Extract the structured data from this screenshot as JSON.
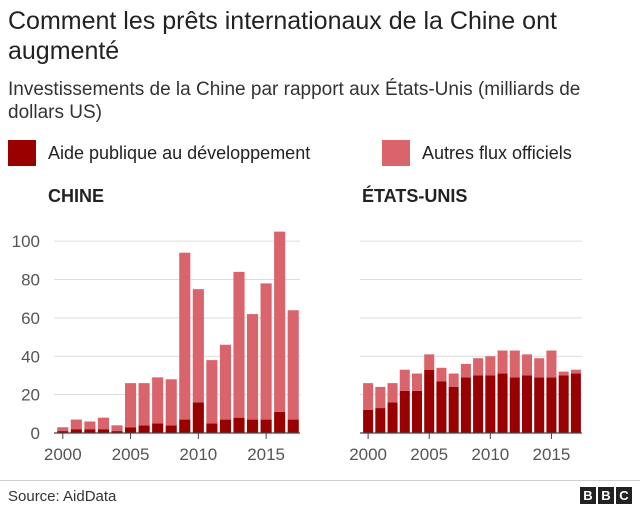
{
  "title": "Comment les prêts internationaux de la Chine ont augmenté",
  "subtitle": "Investissements de la Chine par rapport aux États-Unis (milliards de dollars US)",
  "legend": [
    {
      "label": "Aide publique au développement",
      "color": "#990000"
    },
    {
      "label": "Autres flux officiels",
      "color": "#d9646b"
    }
  ],
  "source": "Source: AidData",
  "logo": [
    "B",
    "B",
    "C"
  ],
  "chart_data": [
    {
      "type": "bar",
      "stacked": true,
      "title": "CHINE",
      "x": [
        2000,
        2001,
        2002,
        2003,
        2004,
        2005,
        2006,
        2007,
        2008,
        2009,
        2010,
        2011,
        2012,
        2013,
        2014,
        2015,
        2016,
        2017
      ],
      "series": [
        {
          "name": "Aide publique au développement",
          "color": "#990000",
          "values": [
            1,
            2,
            2,
            2,
            1,
            3,
            4,
            5,
            4,
            7,
            16,
            5,
            7,
            8,
            7,
            7,
            11,
            7
          ]
        },
        {
          "name": "Autres flux officiels",
          "color": "#d9646b",
          "values": [
            2,
            5,
            4,
            6,
            3,
            23,
            22,
            24,
            24,
            87,
            59,
            33,
            39,
            76,
            55,
            71,
            94,
            57
          ]
        }
      ],
      "xticks": [
        "2000",
        "2005",
        "2010",
        "2015"
      ],
      "yticks": [
        "0",
        "20",
        "40",
        "60",
        "80",
        "100"
      ],
      "ylim": [
        0,
        110
      ],
      "grid": true
    },
    {
      "type": "bar",
      "stacked": true,
      "title": "ÉTATS-UNIS",
      "x": [
        2000,
        2001,
        2002,
        2003,
        2004,
        2005,
        2006,
        2007,
        2008,
        2009,
        2010,
        2011,
        2012,
        2013,
        2014,
        2015,
        2016,
        2017
      ],
      "series": [
        {
          "name": "Aide publique au développement",
          "color": "#990000",
          "values": [
            12,
            13,
            16,
            22,
            22,
            33,
            27,
            24,
            29,
            30,
            30,
            31,
            29,
            30,
            29,
            29,
            30,
            31
          ]
        },
        {
          "name": "Autres flux officiels",
          "color": "#d9646b",
          "values": [
            14,
            11,
            10,
            11,
            9,
            8,
            7,
            7,
            7,
            9,
            10,
            12,
            14,
            11,
            10,
            14,
            2,
            2
          ]
        }
      ],
      "xticks": [
        "2000",
        "2005",
        "2010",
        "2015"
      ],
      "yticks": [
        "0",
        "20",
        "40",
        "60",
        "80",
        "100"
      ],
      "ylim": [
        0,
        110
      ],
      "grid": true
    }
  ]
}
